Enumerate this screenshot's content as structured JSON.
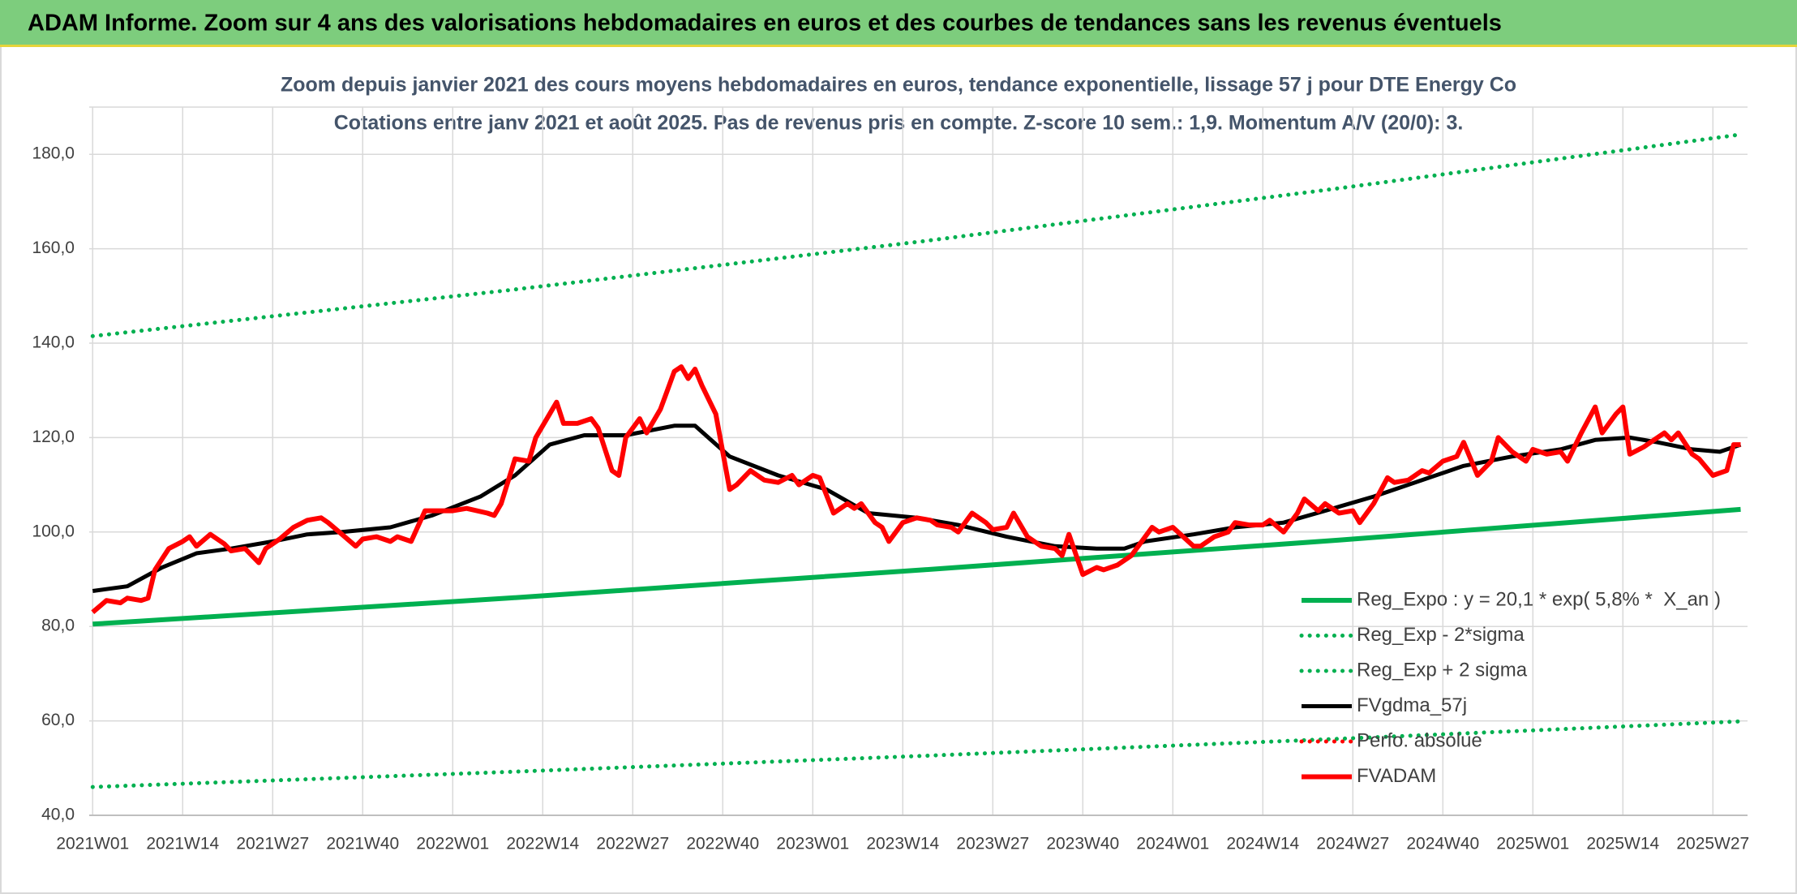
{
  "header": {
    "title": "ADAM Informe. Zoom sur 4 ans des valorisations hebdomadaires en euros et des courbes de tendances sans les revenus éventuels"
  },
  "chart_data": {
    "type": "line",
    "title": "Zoom depuis janvier 2021 des cours moyens hebdomadaires en euros, tendance exponentielle, lissage 57 j pour DTE Energy Co",
    "subtitle": "Cotations entre janv 2021 et août 2025. Pas de revenus pris en compte. Z-score 10 sem.: 1,9. Momentum A/V (20/0): 3.",
    "xlim": [
      -0.5,
      239
    ],
    "xticks": [
      {
        "value": 0,
        "label": "2021W01"
      },
      {
        "value": 13,
        "label": "2021W14"
      },
      {
        "value": 26,
        "label": "2021W27"
      },
      {
        "value": 39,
        "label": "2021W40"
      },
      {
        "value": 52,
        "label": "2022W01"
      },
      {
        "value": 65,
        "label": "2022W14"
      },
      {
        "value": 78,
        "label": "2022W27"
      },
      {
        "value": 91,
        "label": "2022W40"
      },
      {
        "value": 104,
        "label": "2023W01"
      },
      {
        "value": 117,
        "label": "2023W14"
      },
      {
        "value": 130,
        "label": "2023W27"
      },
      {
        "value": 143,
        "label": "2023W40"
      },
      {
        "value": 156,
        "label": "2024W01"
      },
      {
        "value": 169,
        "label": "2024W14"
      },
      {
        "value": 182,
        "label": "2024W27"
      },
      {
        "value": 195,
        "label": "2024W40"
      },
      {
        "value": 208,
        "label": "2025W01"
      },
      {
        "value": 221,
        "label": "2025W14"
      },
      {
        "value": 234,
        "label": "2025W27"
      }
    ],
    "ylim": [
      40,
      190
    ],
    "yticks": [
      {
        "value": 40,
        "label": "40,0"
      },
      {
        "value": 60,
        "label": "60,0"
      },
      {
        "value": 80,
        "label": "80,0"
      },
      {
        "value": 100,
        "label": "100,0"
      },
      {
        "value": 120,
        "label": "120,0"
      },
      {
        "value": 140,
        "label": "140,0"
      },
      {
        "value": 160,
        "label": "160,0"
      },
      {
        "value": 180,
        "label": "180,0"
      }
    ],
    "grid": true,
    "legend": "lower right",
    "series": [
      {
        "name": "Reg_Expo : y = 20,1 * exp( 5,8% *  X_an )",
        "color": "#00b050",
        "style": "solid",
        "width": 6,
        "x": [
          0,
          60,
          120,
          180,
          238
        ],
        "values": [
          80.5,
          86.0,
          92.0,
          98.3,
          104.8
        ]
      },
      {
        "name": "Reg_Exp - 2*sigma",
        "color": "#00b050",
        "style": "dotted",
        "width": 5,
        "x": [
          0,
          60,
          120,
          180,
          238
        ],
        "values": [
          46.0,
          49.2,
          52.6,
          56.2,
          59.9
        ]
      },
      {
        "name": "Reg_Exp + 2 sigma",
        "color": "#00b050",
        "style": "dotted",
        "width": 5,
        "x": [
          0,
          60,
          120,
          180,
          238
        ],
        "values": [
          141.5,
          151.2,
          161.6,
          172.8,
          184.2
        ]
      },
      {
        "name": "FVgdma_57j",
        "color": "#000000",
        "style": "solid",
        "width": 5,
        "x": [
          0,
          5,
          10,
          15,
          20,
          26,
          31,
          36,
          43,
          49,
          56,
          61,
          66,
          71,
          77,
          84,
          87,
          92,
          99,
          106,
          112,
          119,
          125,
          132,
          139,
          145,
          149,
          152,
          159,
          165,
          172,
          178,
          185,
          192,
          198,
          205,
          212,
          217,
          222,
          226,
          231,
          235,
          238
        ],
        "values": [
          87.5,
          88.5,
          92.5,
          95.5,
          96.5,
          98,
          99.5,
          100,
          101,
          103.5,
          107.5,
          112,
          118.5,
          120.5,
          120.5,
          122.5,
          122.5,
          116,
          112,
          109,
          104,
          103,
          101.5,
          99,
          97,
          96.5,
          96.5,
          98,
          99.5,
          101,
          102,
          104.5,
          107.5,
          111,
          114,
          116,
          117.5,
          119.5,
          120,
          119,
          117.5,
          117,
          118.5
        ]
      },
      {
        "name": "Perfo. absolue",
        "color": "#ff0000",
        "style": "dotted",
        "width": 5,
        "x": [],
        "values": []
      },
      {
        "name": "FVADAM",
        "color": "#ff0000",
        "style": "solid",
        "width": 6,
        "x": [
          0,
          2,
          4,
          5,
          7,
          8,
          9,
          11,
          13,
          14,
          15,
          17,
          19,
          20,
          22,
          24,
          25,
          27,
          29,
          31,
          33,
          34,
          36,
          38,
          39,
          41,
          43,
          44,
          46,
          48,
          50,
          52,
          54,
          57,
          58,
          59,
          61,
          63,
          64,
          66,
          67,
          68,
          70,
          72,
          73,
          75,
          76,
          77,
          79,
          80,
          82,
          83,
          84,
          85,
          86,
          87,
          88,
          90,
          92,
          93,
          95,
          97,
          99,
          101,
          102,
          104,
          105,
          107,
          109,
          110,
          111,
          113,
          114,
          115,
          117,
          119,
          121,
          122,
          124,
          125,
          127,
          129,
          130,
          132,
          133,
          135,
          137,
          139,
          140,
          141,
          143,
          145,
          146,
          148,
          150,
          151,
          153,
          154,
          156,
          159,
          160,
          162,
          164,
          165,
          167,
          169,
          170,
          172,
          174,
          175,
          177,
          178,
          180,
          182,
          183,
          185,
          187,
          188,
          190,
          192,
          193,
          195,
          197,
          198,
          200,
          202,
          203,
          205,
          207,
          208,
          210,
          212,
          213,
          215,
          217,
          218,
          220,
          221,
          222,
          224,
          226,
          227,
          228,
          229,
          231,
          232,
          234,
          236,
          237,
          238
        ],
        "values": [
          83,
          85.5,
          85,
          86,
          85.5,
          86,
          92,
          96.5,
          98,
          99,
          97,
          99.5,
          97.5,
          96,
          96.5,
          93.5,
          96.5,
          98.5,
          101,
          102.5,
          103,
          102,
          99.5,
          97,
          98.5,
          99,
          98,
          99,
          98,
          104.5,
          104.5,
          104.5,
          105,
          104,
          103.5,
          106,
          115.5,
          115,
          120,
          125,
          127.5,
          123,
          123,
          124,
          122,
          113,
          112,
          120,
          124,
          121,
          126,
          130,
          134,
          135,
          132.5,
          134.5,
          131,
          125,
          109,
          110,
          113,
          111,
          110.5,
          112,
          110,
          112,
          111.5,
          104,
          106,
          105,
          106,
          102,
          101,
          98,
          102,
          103,
          102.5,
          101.5,
          101,
          100,
          104,
          102,
          100.5,
          101,
          104,
          99,
          97,
          96.5,
          95,
          99.5,
          91,
          92.5,
          92,
          93,
          95,
          97,
          101,
          100,
          101,
          97,
          97,
          99,
          100,
          102,
          101.5,
          101.5,
          102.5,
          100,
          104,
          107,
          104.5,
          106,
          104,
          104.5,
          102,
          106,
          111.5,
          110.5,
          111,
          113,
          112.5,
          115,
          116,
          119,
          112,
          115,
          120,
          117,
          115,
          117.5,
          116.5,
          117,
          115,
          121,
          126.5,
          121,
          125,
          126.5,
          116.5,
          118,
          120,
          121,
          119.5,
          121,
          116.5,
          115.5,
          112,
          113,
          118.5,
          118.5
        ]
      }
    ]
  }
}
